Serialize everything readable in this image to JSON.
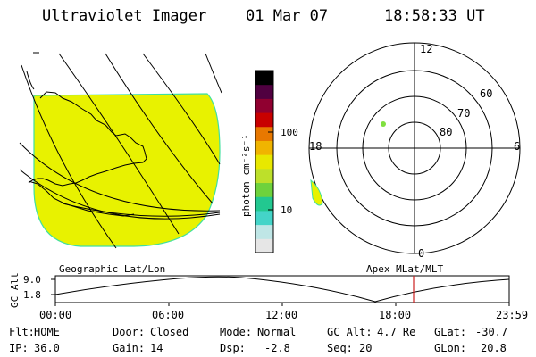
{
  "header": {
    "instrument": "Ultraviolet Imager",
    "date": "01 Mar 07",
    "time": "18:58:33 UT"
  },
  "colorbar": {
    "unit_label": "photon cm⁻²s⁻¹",
    "ticks": [
      "100",
      "10"
    ],
    "colors": [
      "#e6e6e6",
      "#bfe6e6",
      "#44d4c8",
      "#22c890",
      "#6ed23c",
      "#bde02a",
      "#e8e800",
      "#f0b400",
      "#e87800",
      "#c80000",
      "#900030",
      "#500040",
      "#000000"
    ]
  },
  "polar_plot": {
    "mlt_labels": {
      "top": "12",
      "left": "18",
      "right": "6",
      "bottom": "0"
    },
    "lat_labels": [
      "60",
      "70",
      "80"
    ]
  },
  "map_panel": {
    "fill_color": "#e8f200",
    "edge_color": "#40e0a0"
  },
  "timeline": {
    "ylabel": "GC Alt",
    "yticks": [
      "9.0",
      "1.8"
    ],
    "left_title": "Geographic Lat/Lon",
    "right_title": "Apex MLat/MLT",
    "xticks": [
      "00:00",
      "06:00",
      "12:00",
      "18:00",
      "23:59"
    ],
    "marker_color": "#cc2020"
  },
  "status": {
    "row1": [
      {
        "label": "Flt:",
        "value": "HOME"
      },
      {
        "label": "Door:",
        "value": "Closed"
      },
      {
        "label": "Mode:",
        "value": "Normal"
      },
      {
        "label": "GC Alt:",
        "value": "4.7 Re"
      },
      {
        "label": "GLat:",
        "value": "-30.7"
      }
    ],
    "row2": [
      {
        "label": "IP:",
        "value": "36.0"
      },
      {
        "label": "Gain:",
        "value": "14"
      },
      {
        "label": "Dsp:",
        "value": "-2.8"
      },
      {
        "label": "Seq:",
        "value": "20"
      },
      {
        "label": "GLon:",
        "value": "20.8"
      }
    ]
  }
}
